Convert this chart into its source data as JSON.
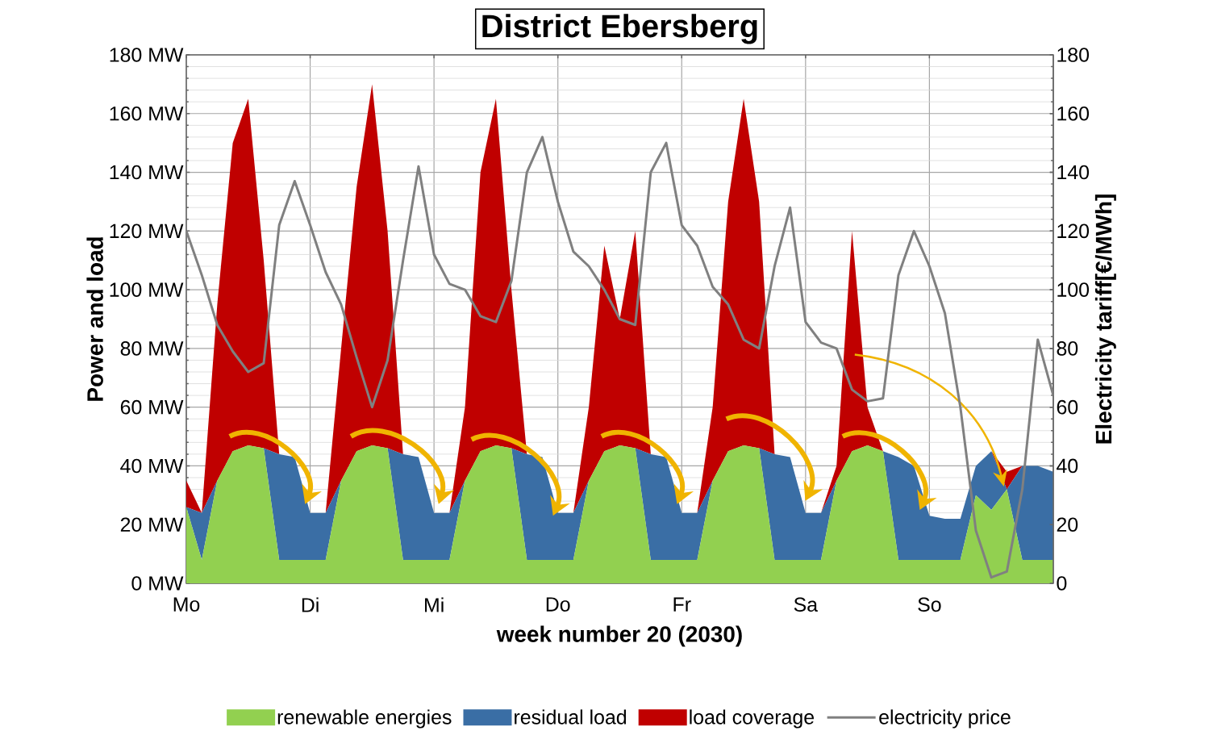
{
  "chart_data": {
    "type": "area",
    "stacked": true,
    "title": "District Ebersberg",
    "xlabel": "week number 20 (2030)",
    "ylabel": "Power and load",
    "y2label": "Electricity tariff[€/MWh]",
    "categories": [
      "Mo",
      null,
      null,
      null,
      null,
      null,
      null,
      null,
      "Di",
      null,
      null,
      null,
      null,
      null,
      null,
      null,
      "Mi",
      null,
      null,
      null,
      null,
      null,
      null,
      null,
      "Do",
      null,
      null,
      null,
      null,
      null,
      null,
      null,
      "Fr",
      null,
      null,
      null,
      null,
      null,
      null,
      null,
      "Sa",
      null,
      null,
      null,
      null,
      null,
      null,
      null,
      "So",
      null,
      null,
      null,
      null,
      null,
      null,
      null,
      null
    ],
    "series": [
      {
        "name": "renewable energies",
        "color": "#92d050",
        "values": [
          26,
          8,
          35,
          45,
          47,
          46,
          8,
          8,
          8,
          8,
          35,
          45,
          47,
          46,
          8,
          8,
          8,
          8,
          35,
          45,
          47,
          46,
          8,
          8,
          8,
          8,
          35,
          45,
          47,
          46,
          8,
          8,
          8,
          8,
          35,
          45,
          47,
          46,
          8,
          8,
          8,
          8,
          35,
          45,
          47,
          45,
          8,
          8,
          8,
          8,
          8,
          30,
          25,
          32,
          8,
          8,
          8
        ]
      },
      {
        "name": "residual load",
        "color": "#3a6ea5",
        "values": [
          0,
          16,
          0,
          0,
          0,
          0,
          36,
          35,
          16,
          16,
          0,
          0,
          0,
          0,
          36,
          35,
          16,
          16,
          0,
          0,
          0,
          0,
          36,
          35,
          16,
          16,
          0,
          0,
          0,
          0,
          36,
          35,
          16,
          16,
          0,
          0,
          0,
          0,
          36,
          35,
          16,
          16,
          0,
          0,
          0,
          0,
          35,
          32,
          15,
          14,
          14,
          10,
          20,
          0,
          32,
          32,
          30
        ]
      },
      {
        "name": "load coverage",
        "color": "#c00000",
        "values": [
          9,
          0,
          60,
          105,
          118,
          64,
          0,
          0,
          0,
          0,
          45,
          90,
          123,
          74,
          0,
          0,
          0,
          0,
          25,
          95,
          118,
          54,
          0,
          0,
          0,
          0,
          25,
          70,
          43,
          74,
          0,
          0,
          0,
          0,
          25,
          85,
          118,
          84,
          0,
          0,
          0,
          0,
          5,
          75,
          13,
          0,
          0,
          0,
          0,
          0,
          0,
          0,
          0,
          6,
          0,
          0,
          0
        ]
      },
      {
        "name": "electricity price",
        "type": "line",
        "axis": "y2",
        "color": "#808080",
        "values": [
          120,
          105,
          88,
          79,
          72,
          75,
          122,
          137,
          122,
          106,
          95,
          77,
          60,
          76,
          110,
          142,
          112,
          102,
          100,
          91,
          89,
          103,
          140,
          152,
          130,
          113,
          108,
          100,
          90,
          88,
          140,
          150,
          122,
          115,
          101,
          95,
          83,
          80,
          108,
          128,
          89,
          82,
          80,
          66,
          62,
          63,
          105,
          120,
          108,
          92,
          60,
          18,
          2,
          4,
          32,
          83,
          64
        ]
      }
    ],
    "ylim": [
      0,
      180
    ],
    "yticks": [
      {
        "value": 0,
        "label": "0 MW"
      },
      {
        "value": 20,
        "label": "20 MW"
      },
      {
        "value": 40,
        "label": "40 MW"
      },
      {
        "value": 60,
        "label": "60 MW"
      },
      {
        "value": 80,
        "label": "80 MW"
      },
      {
        "value": 100,
        "label": "100 MW"
      },
      {
        "value": 120,
        "label": "120 MW"
      },
      {
        "value": 140,
        "label": "140 MW"
      },
      {
        "value": 160,
        "label": "160 MW"
      },
      {
        "value": 180,
        "label": "180 MW"
      }
    ],
    "y2lim": [
      0,
      180
    ],
    "y2ticks": [
      0,
      20,
      40,
      60,
      80,
      100,
      120,
      140,
      160,
      180
    ],
    "grid": true,
    "legend": "bottom"
  }
}
